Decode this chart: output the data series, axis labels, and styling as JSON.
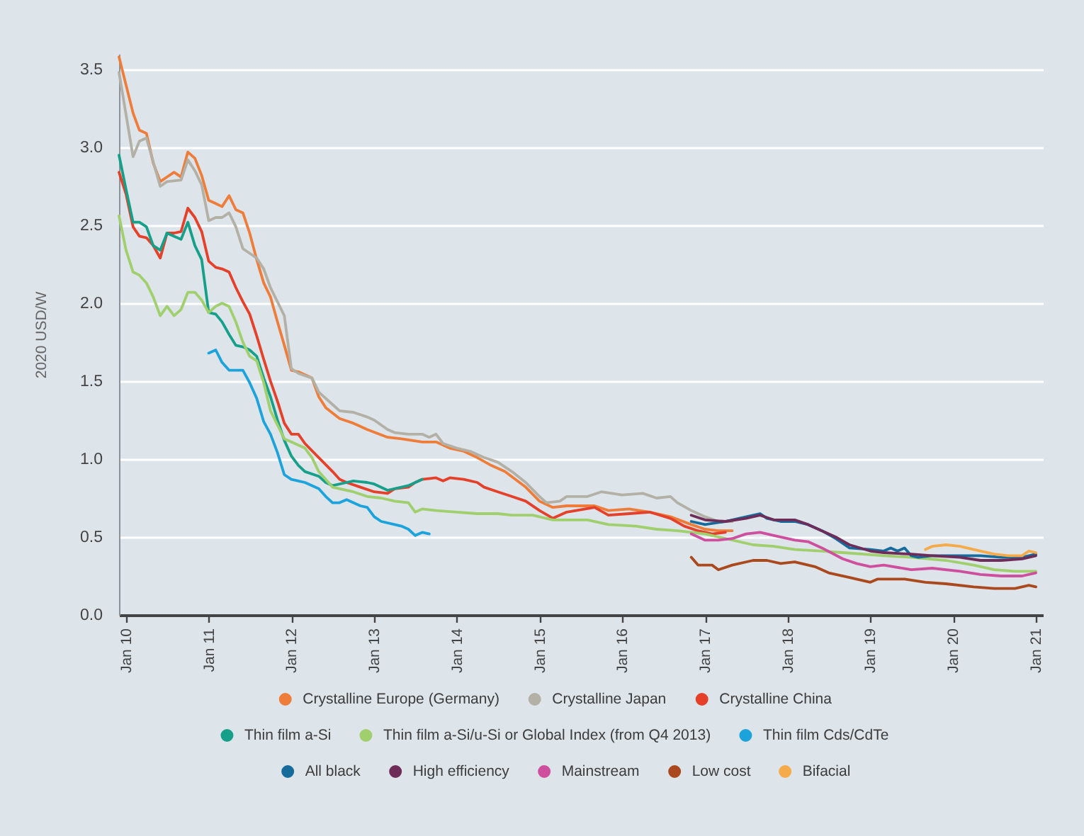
{
  "chart_data": {
    "type": "line",
    "ylabel": "2020 USD/W",
    "xlim": [
      "2009-12",
      "2021-02"
    ],
    "ylim": [
      0,
      3.6
    ],
    "xticks": [
      {
        "value": "2010-01",
        "label": "Jan 10"
      },
      {
        "value": "2011-01",
        "label": "Jan 11"
      },
      {
        "value": "2012-01",
        "label": "Jan 12"
      },
      {
        "value": "2013-01",
        "label": "Jan 13"
      },
      {
        "value": "2014-01",
        "label": "Jan 14"
      },
      {
        "value": "2015-01",
        "label": "Jan 15"
      },
      {
        "value": "2016-01",
        "label": "Jan 16"
      },
      {
        "value": "2017-01",
        "label": "Jan 17"
      },
      {
        "value": "2018-01",
        "label": "Jan 18"
      },
      {
        "value": "2019-01",
        "label": "Jan 19"
      },
      {
        "value": "2020-01",
        "label": "Jan 20"
      },
      {
        "value": "2021-01",
        "label": "Jan 21"
      }
    ],
    "yticks": [
      {
        "value": 0,
        "label": "0.0"
      },
      0.5,
      {
        "value": 1,
        "label": "1.0"
      },
      1.5,
      {
        "value": 2,
        "label": "2.0"
      },
      2.5,
      {
        "value": 3,
        "label": "3.0"
      },
      3.5
    ],
    "grid": "y",
    "legend": "bottom",
    "series": [
      {
        "name": "Crystalline Europe (Germany)",
        "color": "#ef7d3a",
        "x": [
          "2009-12",
          "2010-02",
          "2010-03",
          "2010-04",
          "2010-05",
          "2010-06",
          "2010-07",
          "2010-08",
          "2010-09",
          "2010-10",
          "2010-11",
          "2010-12",
          "2011-01",
          "2011-02",
          "2011-03",
          "2011-04",
          "2011-05",
          "2011-06",
          "2011-07",
          "2011-08",
          "2011-09",
          "2011-10",
          "2011-11",
          "2011-12",
          "2012-01",
          "2012-02",
          "2012-04",
          "2012-05",
          "2012-06",
          "2012-08",
          "2012-10",
          "2012-12",
          "2013-03",
          "2013-05",
          "2013-08",
          "2013-10",
          "2013-12",
          "2014-02",
          "2014-04",
          "2014-06",
          "2014-08",
          "2014-11",
          "2015-01",
          "2015-03",
          "2015-05",
          "2015-09",
          "2015-11",
          "2016-02",
          "2016-05",
          "2016-08",
          "2016-11",
          "2017-01",
          "2017-03",
          "2017-05"
        ],
        "values": [
          3.58,
          3.22,
          3.11,
          3.09,
          2.9,
          2.78,
          2.81,
          2.84,
          2.81,
          2.97,
          2.93,
          2.82,
          2.66,
          2.64,
          2.62,
          2.69,
          2.6,
          2.58,
          2.45,
          2.28,
          2.13,
          2.04,
          1.88,
          1.73,
          1.57,
          1.56,
          1.52,
          1.4,
          1.33,
          1.26,
          1.23,
          1.19,
          1.14,
          1.13,
          1.11,
          1.11,
          1.07,
          1.05,
          1.01,
          0.96,
          0.92,
          0.82,
          0.73,
          0.69,
          0.7,
          0.7,
          0.67,
          0.68,
          0.66,
          0.63,
          0.58,
          0.55,
          0.54,
          0.54
        ]
      },
      {
        "name": "Crystalline Japan",
        "color": "#b3b0a6",
        "x": [
          "2009-12",
          "2010-02",
          "2010-03",
          "2010-04",
          "2010-06",
          "2010-07",
          "2010-09",
          "2010-10",
          "2010-11",
          "2010-12",
          "2011-01",
          "2011-02",
          "2011-03",
          "2011-04",
          "2011-05",
          "2011-06",
          "2011-08",
          "2011-09",
          "2011-10",
          "2011-12",
          "2012-01",
          "2012-02",
          "2012-04",
          "2012-05",
          "2012-07",
          "2012-08",
          "2012-10",
          "2012-12",
          "2013-01",
          "2013-03",
          "2013-04",
          "2013-06",
          "2013-08",
          "2013-09",
          "2013-10",
          "2013-11",
          "2014-01",
          "2014-03",
          "2014-05",
          "2014-07",
          "2014-09",
          "2014-11",
          "2015-01",
          "2015-02",
          "2015-04",
          "2015-05",
          "2015-08",
          "2015-10",
          "2016-01",
          "2016-04",
          "2016-06",
          "2016-08",
          "2016-09",
          "2016-11",
          "2017-01",
          "2017-03",
          "2017-05"
        ],
        "values": [
          3.48,
          2.94,
          3.04,
          3.06,
          2.75,
          2.78,
          2.79,
          2.92,
          2.85,
          2.76,
          2.53,
          2.55,
          2.55,
          2.58,
          2.49,
          2.35,
          2.29,
          2.22,
          2.1,
          1.92,
          1.58,
          1.55,
          1.52,
          1.43,
          1.35,
          1.31,
          1.3,
          1.27,
          1.25,
          1.19,
          1.17,
          1.16,
          1.16,
          1.14,
          1.16,
          1.1,
          1.07,
          1.05,
          1.01,
          0.98,
          0.92,
          0.85,
          0.76,
          0.72,
          0.73,
          0.76,
          0.76,
          0.79,
          0.77,
          0.78,
          0.75,
          0.76,
          0.72,
          0.67,
          0.63,
          0.6,
          0.6
        ]
      },
      {
        "name": "Crystalline China",
        "color": "#e5402a",
        "x": [
          "2009-12",
          "2010-01",
          "2010-02",
          "2010-03",
          "2010-04",
          "2010-05",
          "2010-06",
          "2010-07",
          "2010-08",
          "2010-09",
          "2010-10",
          "2010-11",
          "2010-12",
          "2011-01",
          "2011-02",
          "2011-03",
          "2011-04",
          "2011-05",
          "2011-06",
          "2011-07",
          "2011-08",
          "2011-09",
          "2011-10",
          "2011-11",
          "2011-12",
          "2012-01",
          "2012-02",
          "2012-03",
          "2012-05",
          "2012-07",
          "2012-08",
          "2012-09",
          "2012-11",
          "2013-01",
          "2013-03",
          "2013-04",
          "2013-06",
          "2013-07",
          "2013-08",
          "2013-10",
          "2013-11",
          "2013-12",
          "2014-02",
          "2014-04",
          "2014-05",
          "2014-07",
          "2014-09",
          "2014-11",
          "2015-01",
          "2015-03",
          "2015-05",
          "2015-09",
          "2015-11",
          "2016-02",
          "2016-05",
          "2016-08",
          "2016-10",
          "2016-12",
          "2017-02",
          "2017-04"
        ],
        "values": [
          2.84,
          2.7,
          2.49,
          2.43,
          2.42,
          2.37,
          2.29,
          2.45,
          2.45,
          2.46,
          2.61,
          2.55,
          2.46,
          2.27,
          2.23,
          2.22,
          2.2,
          2.1,
          2.01,
          1.93,
          1.79,
          1.64,
          1.5,
          1.37,
          1.23,
          1.16,
          1.16,
          1.1,
          1.01,
          0.92,
          0.87,
          0.85,
          0.82,
          0.79,
          0.78,
          0.81,
          0.82,
          0.85,
          0.87,
          0.88,
          0.86,
          0.88,
          0.87,
          0.85,
          0.82,
          0.79,
          0.76,
          0.73,
          0.67,
          0.62,
          0.66,
          0.69,
          0.64,
          0.65,
          0.66,
          0.62,
          0.57,
          0.54,
          0.52,
          0.53
        ]
      },
      {
        "name": "Thin film a-Si",
        "color": "#16a08a",
        "x": [
          "2009-12",
          "2010-01",
          "2010-02",
          "2010-03",
          "2010-04",
          "2010-05",
          "2010-06",
          "2010-07",
          "2010-08",
          "2010-09",
          "2010-10",
          "2010-11",
          "2010-12",
          "2011-01",
          "2011-02",
          "2011-03",
          "2011-04",
          "2011-05",
          "2011-06",
          "2011-07",
          "2011-08",
          "2011-09",
          "2011-10",
          "2011-11",
          "2011-12",
          "2012-01",
          "2012-02",
          "2012-03",
          "2012-05",
          "2012-06",
          "2012-07",
          "2012-09",
          "2012-10",
          "2012-12",
          "2013-01",
          "2013-03",
          "2013-06",
          "2013-08"
        ],
        "values": [
          2.95,
          2.73,
          2.52,
          2.52,
          2.49,
          2.37,
          2.34,
          2.45,
          2.43,
          2.41,
          2.52,
          2.37,
          2.28,
          1.94,
          1.93,
          1.88,
          1.8,
          1.73,
          1.72,
          1.7,
          1.66,
          1.52,
          1.4,
          1.25,
          1.12,
          1.02,
          0.96,
          0.92,
          0.89,
          0.85,
          0.83,
          0.85,
          0.86,
          0.85,
          0.84,
          0.8,
          0.83,
          0.87
        ]
      },
      {
        "name": "Thin film a-Si/u-Si or Global Index (from Q4 2013)",
        "color": "#a0cf6e",
        "x": [
          "2009-12",
          "2010-01",
          "2010-02",
          "2010-03",
          "2010-04",
          "2010-05",
          "2010-06",
          "2010-07",
          "2010-08",
          "2010-09",
          "2010-10",
          "2010-11",
          "2010-12",
          "2011-01",
          "2011-02",
          "2011-03",
          "2011-04",
          "2011-05",
          "2011-06",
          "2011-07",
          "2011-08",
          "2011-09",
          "2011-10",
          "2011-12",
          "2012-01",
          "2012-03",
          "2012-04",
          "2012-05",
          "2012-07",
          "2012-08",
          "2012-10",
          "2012-12",
          "2013-02",
          "2013-04",
          "2013-06",
          "2013-07",
          "2013-08",
          "2013-10",
          "2014-01",
          "2014-04",
          "2014-07",
          "2014-09",
          "2014-12",
          "2015-03",
          "2015-08",
          "2015-11",
          "2016-03",
          "2016-06",
          "2016-09",
          "2017-01",
          "2017-04",
          "2017-08",
          "2017-11",
          "2018-02",
          "2018-06",
          "2018-09",
          "2018-12",
          "2019-03",
          "2019-07",
          "2019-12",
          "2020-04",
          "2020-07",
          "2020-10",
          "2021-01"
        ],
        "values": [
          2.56,
          2.34,
          2.2,
          2.18,
          2.13,
          2.04,
          1.92,
          1.98,
          1.92,
          1.96,
          2.07,
          2.07,
          2.02,
          1.94,
          1.98,
          2.0,
          1.98,
          1.88,
          1.75,
          1.66,
          1.63,
          1.49,
          1.31,
          1.13,
          1.11,
          1.07,
          1.01,
          0.92,
          0.82,
          0.81,
          0.79,
          0.76,
          0.75,
          0.73,
          0.72,
          0.66,
          0.68,
          0.67,
          0.66,
          0.65,
          0.65,
          0.64,
          0.64,
          0.61,
          0.61,
          0.58,
          0.57,
          0.55,
          0.54,
          0.52,
          0.49,
          0.45,
          0.44,
          0.42,
          0.41,
          0.4,
          0.39,
          0.38,
          0.37,
          0.35,
          0.32,
          0.29,
          0.28,
          0.28
        ]
      },
      {
        "name": "Thin film Cds/CdTe",
        "color": "#1ca3dc",
        "x": [
          "2011-01",
          "2011-02",
          "2011-03",
          "2011-04",
          "2011-06",
          "2011-07",
          "2011-08",
          "2011-09",
          "2011-10",
          "2011-11",
          "2011-12",
          "2012-01",
          "2012-02",
          "2012-03",
          "2012-05",
          "2012-06",
          "2012-07",
          "2012-08",
          "2012-09",
          "2012-11",
          "2012-12",
          "2013-01",
          "2013-02",
          "2013-04",
          "2013-05",
          "2013-06",
          "2013-07",
          "2013-08",
          "2013-09"
        ],
        "values": [
          1.68,
          1.7,
          1.62,
          1.57,
          1.57,
          1.49,
          1.39,
          1.24,
          1.16,
          1.04,
          0.9,
          0.87,
          0.86,
          0.85,
          0.81,
          0.76,
          0.72,
          0.72,
          0.74,
          0.7,
          0.69,
          0.63,
          0.6,
          0.58,
          0.57,
          0.55,
          0.51,
          0.53,
          0.52
        ]
      },
      {
        "name": "All black",
        "color": "#156b9c",
        "x": [
          "2016-11",
          "2017-01",
          "2017-04",
          "2017-06",
          "2017-09",
          "2017-10",
          "2017-12",
          "2018-02",
          "2018-04",
          "2018-06",
          "2018-08",
          "2018-10",
          "2019-01",
          "2019-03",
          "2019-04",
          "2019-05",
          "2019-06",
          "2019-07",
          "2019-08",
          "2019-10",
          "2019-12",
          "2020-03",
          "2020-05",
          "2020-08",
          "2020-11",
          "2021-01"
        ],
        "values": [
          0.6,
          0.58,
          0.6,
          0.62,
          0.65,
          0.62,
          0.6,
          0.6,
          0.58,
          0.54,
          0.49,
          0.43,
          0.42,
          0.41,
          0.43,
          0.41,
          0.43,
          0.38,
          0.37,
          0.38,
          0.38,
          0.38,
          0.38,
          0.37,
          0.37,
          0.39
        ]
      },
      {
        "name": "High efficiency",
        "color": "#6e2c58",
        "x": [
          "2016-11",
          "2017-01",
          "2017-04",
          "2017-07",
          "2017-09",
          "2017-11",
          "2018-02",
          "2018-04",
          "2018-06",
          "2018-08",
          "2018-10",
          "2019-01",
          "2019-03",
          "2019-07",
          "2019-10",
          "2020-02",
          "2020-05",
          "2020-08",
          "2020-11",
          "2021-01"
        ],
        "values": [
          0.64,
          0.61,
          0.6,
          0.62,
          0.64,
          0.61,
          0.61,
          0.58,
          0.54,
          0.5,
          0.45,
          0.41,
          0.4,
          0.39,
          0.38,
          0.37,
          0.35,
          0.35,
          0.36,
          0.38
        ]
      },
      {
        "name": "Mainstream",
        "color": "#cf4f9f",
        "x": [
          "2016-11",
          "2017-01",
          "2017-03",
          "2017-05",
          "2017-07",
          "2017-09",
          "2017-11",
          "2018-02",
          "2018-04",
          "2018-06",
          "2018-09",
          "2018-11",
          "2019-01",
          "2019-03",
          "2019-07",
          "2019-10",
          "2020-02",
          "2020-05",
          "2020-08",
          "2020-11",
          "2021-01"
        ],
        "values": [
          0.52,
          0.48,
          0.48,
          0.49,
          0.52,
          0.53,
          0.51,
          0.48,
          0.47,
          0.43,
          0.36,
          0.33,
          0.31,
          0.32,
          0.29,
          0.3,
          0.28,
          0.26,
          0.25,
          0.25,
          0.27
        ]
      },
      {
        "name": "Low cost",
        "color": "#a9491d",
        "x": [
          "2016-11",
          "2016-12",
          "2017-02",
          "2017-03",
          "2017-05",
          "2017-08",
          "2017-10",
          "2017-12",
          "2018-02",
          "2018-05",
          "2018-07",
          "2018-10",
          "2019-01",
          "2019-02",
          "2019-06",
          "2019-09",
          "2019-12",
          "2020-04",
          "2020-07",
          "2020-10",
          "2020-12",
          "2021-01"
        ],
        "values": [
          0.37,
          0.32,
          0.32,
          0.29,
          0.32,
          0.35,
          0.35,
          0.33,
          0.34,
          0.31,
          0.27,
          0.24,
          0.21,
          0.23,
          0.23,
          0.21,
          0.2,
          0.18,
          0.17,
          0.17,
          0.19,
          0.18
        ]
      },
      {
        "name": "Bifacial",
        "color": "#f6ab4a",
        "x": [
          "2019-09",
          "2019-10",
          "2019-12",
          "2020-02",
          "2020-04",
          "2020-07",
          "2020-09",
          "2020-11",
          "2020-12",
          "2021-01"
        ],
        "values": [
          0.42,
          0.44,
          0.45,
          0.44,
          0.42,
          0.39,
          0.38,
          0.38,
          0.41,
          0.4
        ]
      }
    ]
  }
}
